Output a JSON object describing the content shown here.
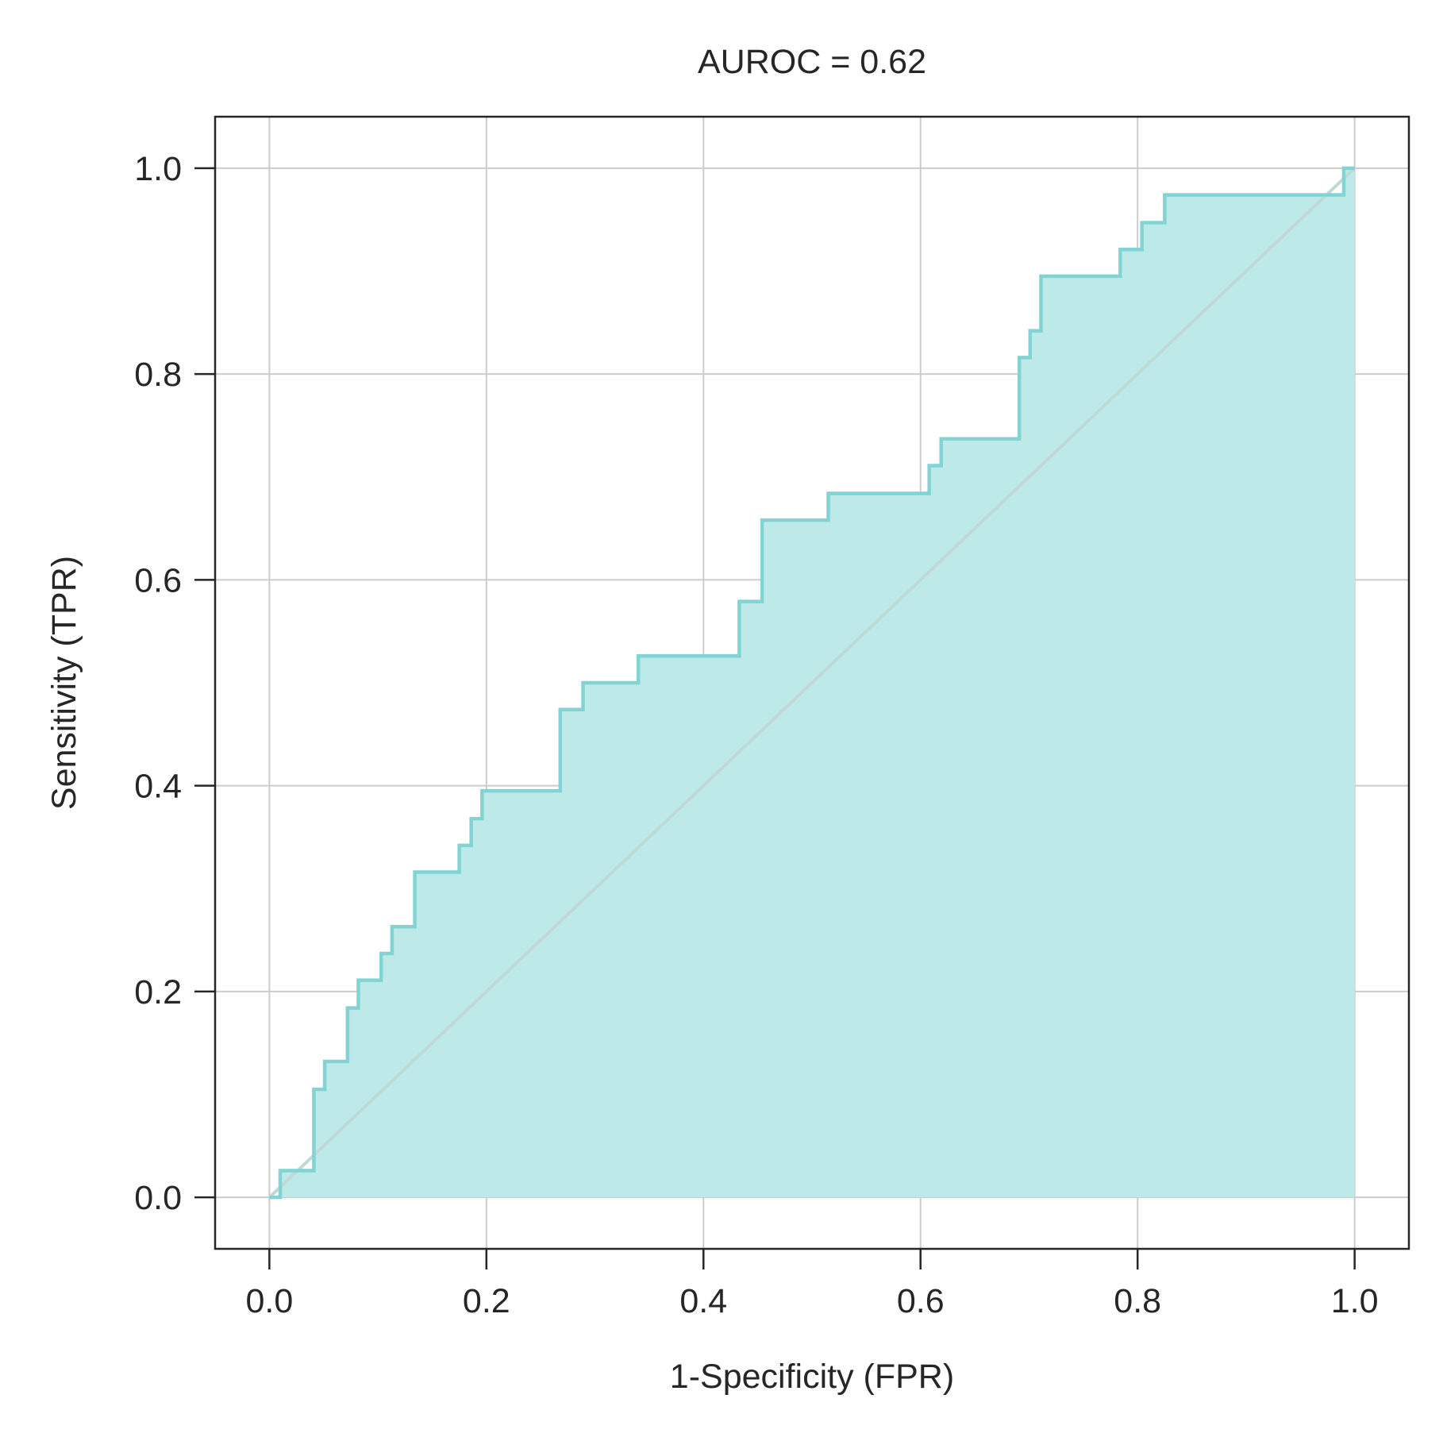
{
  "chart_data": {
    "type": "line",
    "title": "AUROC = 0.62",
    "xlabel": "1-Specificity (FPR)",
    "ylabel": "Sensitivity (TPR)",
    "xlim": [
      -0.05,
      1.05
    ],
    "ylim": [
      -0.05,
      1.05
    ],
    "xticks": [
      "0.0",
      "0.2",
      "0.4",
      "0.6",
      "0.8",
      "1.0"
    ],
    "yticks": [
      "0.0",
      "0.2",
      "0.4",
      "0.6",
      "0.8",
      "1.0"
    ],
    "xtick_values": [
      0.0,
      0.2,
      0.4,
      0.6,
      0.8,
      1.0
    ],
    "ytick_values": [
      0.0,
      0.2,
      0.4,
      0.6,
      0.8,
      1.0
    ],
    "grid": true,
    "auroc": 0.62,
    "colors": {
      "curve": "#82d4d4",
      "fill": "#bde9e9",
      "diagonal": "#bfd9d6",
      "grid": "#cccccc",
      "frame": "#262626"
    },
    "series": [
      {
        "type": "step",
        "x": [
          0.0,
          0.01,
          0.01,
          0.041,
          0.041,
          0.051,
          0.051,
          0.072,
          0.072,
          0.082,
          0.082,
          0.103,
          0.103,
          0.113,
          0.113,
          0.134,
          0.134,
          0.175,
          0.175,
          0.186,
          0.186,
          0.196,
          0.196,
          0.268,
          0.268,
          0.289,
          0.289,
          0.34,
          0.34,
          0.433,
          0.433,
          0.454,
          0.454,
          0.515,
          0.515,
          0.608,
          0.608,
          0.619,
          0.619,
          0.691,
          0.691,
          0.701,
          0.701,
          0.711,
          0.711,
          0.784,
          0.784,
          0.804,
          0.804,
          0.825,
          0.825,
          0.99,
          0.99,
          1.0
        ],
        "y": [
          0.0,
          0.0,
          0.026,
          0.026,
          0.105,
          0.105,
          0.132,
          0.132,
          0.184,
          0.184,
          0.211,
          0.211,
          0.237,
          0.237,
          0.263,
          0.263,
          0.316,
          0.316,
          0.342,
          0.342,
          0.368,
          0.368,
          0.395,
          0.395,
          0.474,
          0.474,
          0.5,
          0.5,
          0.526,
          0.526,
          0.579,
          0.579,
          0.658,
          0.658,
          0.684,
          0.684,
          0.711,
          0.711,
          0.737,
          0.737,
          0.816,
          0.816,
          0.842,
          0.842,
          0.895,
          0.895,
          0.921,
          0.921,
          0.947,
          0.947,
          0.974,
          0.974,
          1.0,
          1.0
        ]
      },
      {
        "type": "diagonal",
        "x": [
          0.0,
          1.0
        ],
        "y": [
          0.0,
          1.0
        ]
      }
    ]
  }
}
